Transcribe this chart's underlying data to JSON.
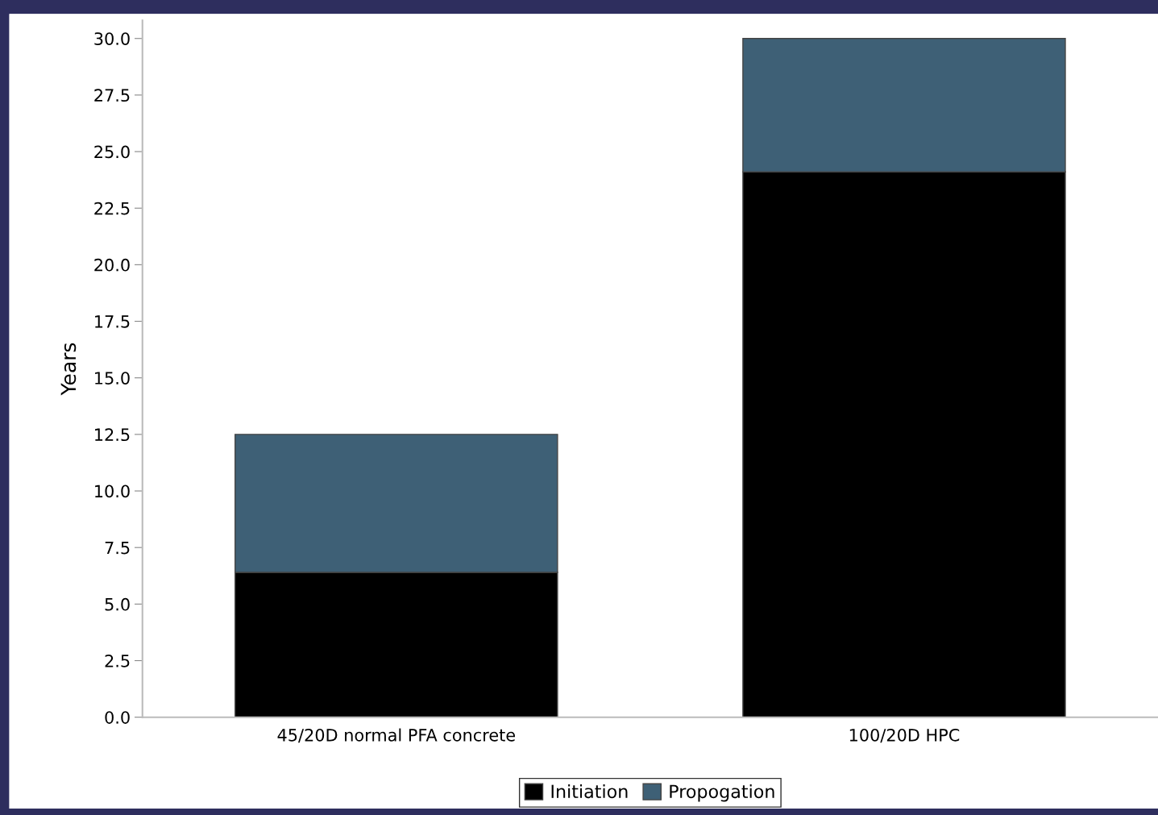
{
  "chart_data": {
    "type": "bar",
    "stacked": true,
    "ylabel": "Years",
    "categories": [
      "45/20D normal PFA concrete",
      "100/20D HPC"
    ],
    "series": [
      {
        "name": "Initiation",
        "color": "#000000",
        "values": [
          6.4,
          24.1
        ]
      },
      {
        "name": "Propogation",
        "color": "#3e6076",
        "values": [
          6.1,
          5.9
        ]
      }
    ],
    "ylim": [
      0,
      30.8
    ],
    "yticks": [
      {
        "value": 0,
        "label": "0.0"
      },
      2.5,
      {
        "value": 5,
        "label": "5.0"
      },
      7.5,
      {
        "value": 10,
        "label": "10.0"
      },
      12.5,
      {
        "value": 15,
        "label": "15.0"
      },
      17.5,
      {
        "value": 20,
        "label": "20.0"
      },
      22.5,
      {
        "value": 25,
        "label": "25.0"
      },
      27.5,
      {
        "value": 30,
        "label": "30.0"
      }
    ],
    "grid": false,
    "legend": "bottom"
  }
}
